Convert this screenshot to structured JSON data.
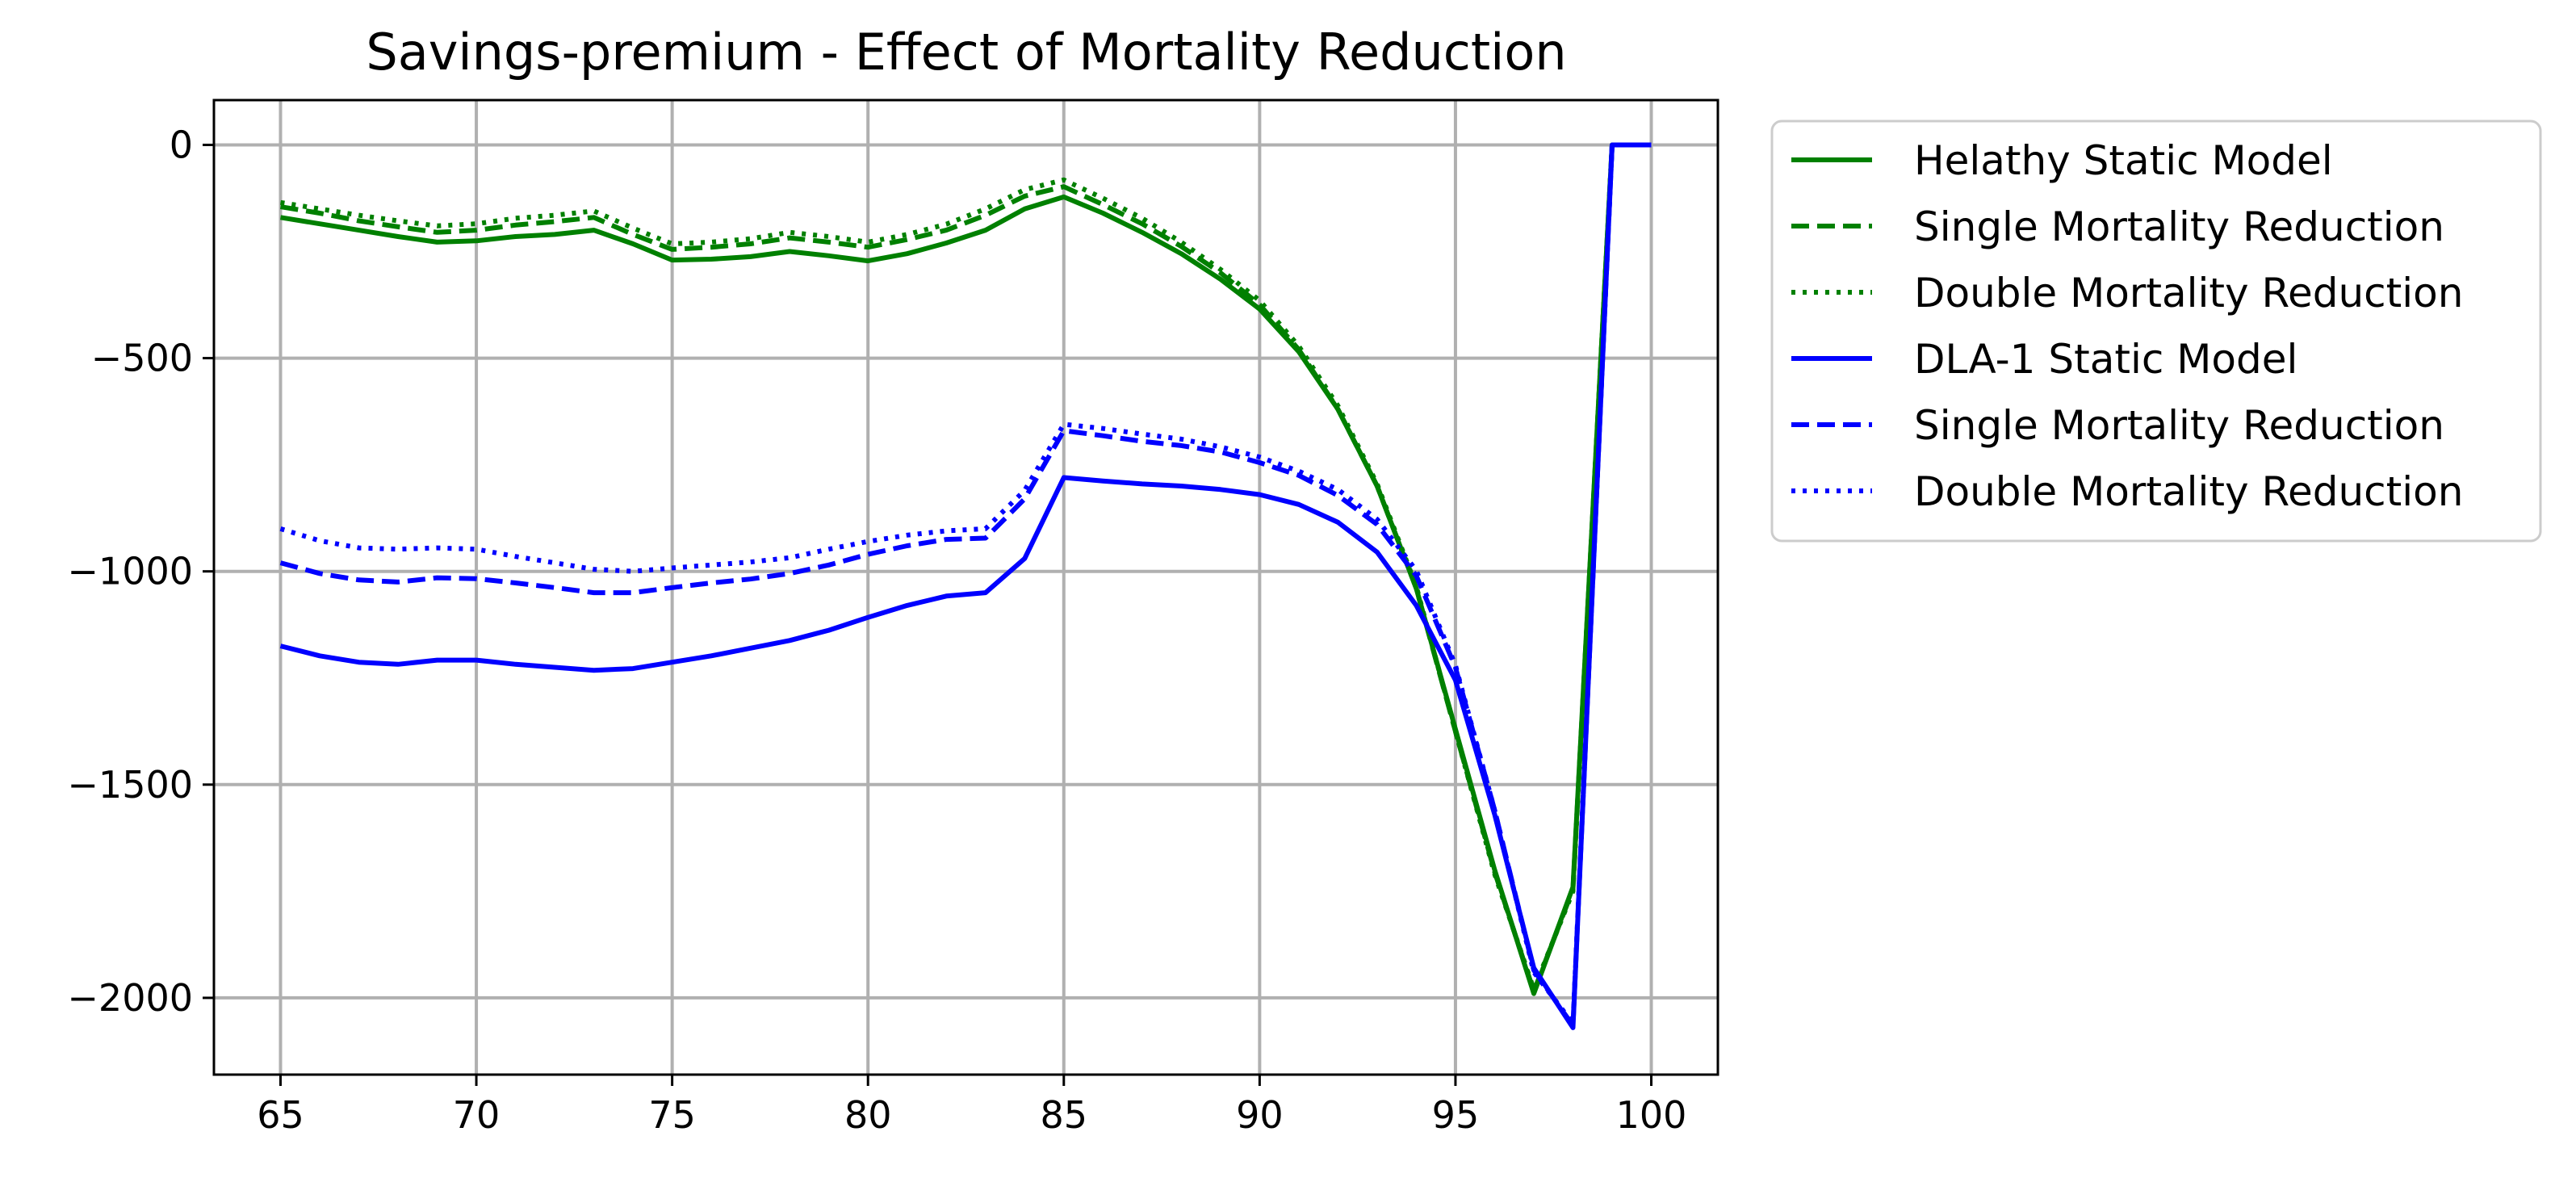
{
  "chart_data": {
    "type": "line",
    "title": "Savings-premium - Effect of Mortality Reduction",
    "xlabel": "",
    "ylabel": "",
    "xlim": [
      63.3,
      101.7
    ],
    "ylim": [
      -2180,
      105
    ],
    "xticks": [
      65,
      70,
      75,
      80,
      85,
      90,
      95,
      100
    ],
    "xtick_labels": [
      "65",
      "70",
      "75",
      "80",
      "85",
      "90",
      "95",
      "100"
    ],
    "yticks": [
      0,
      -500,
      -1000,
      -1500,
      -2000
    ],
    "ytick_labels": [
      "0",
      "−500",
      "−1000",
      "−1500",
      "−2000"
    ],
    "grid": true,
    "legend_position": "outside-top-right",
    "x": [
      65,
      66,
      67,
      68,
      69,
      70,
      71,
      72,
      73,
      74,
      75,
      76,
      77,
      78,
      79,
      80,
      81,
      82,
      83,
      84,
      85,
      86,
      87,
      88,
      89,
      90,
      91,
      92,
      93,
      94,
      95,
      96,
      97,
      98,
      99,
      100
    ],
    "series": [
      {
        "name": "Helathy Static Model",
        "color": "#008000",
        "dash": "solid",
        "values": [
          -170,
          -185,
          -200,
          -215,
          -228,
          -225,
          -215,
          -210,
          -200,
          -232,
          -270,
          -268,
          -262,
          -250,
          -260,
          -272,
          -255,
          -230,
          -200,
          -150,
          -122,
          -160,
          -205,
          -255,
          -315,
          -385,
          -485,
          -620,
          -800,
          -1040,
          -1370,
          -1700,
          -1990,
          -1740,
          0,
          0
        ]
      },
      {
        "name": "Single Mortality Reduction",
        "color": "#008000",
        "dash": "dashed",
        "values": [
          -145,
          -160,
          -178,
          -192,
          -205,
          -200,
          -188,
          -180,
          -170,
          -210,
          -245,
          -240,
          -232,
          -218,
          -228,
          -240,
          -222,
          -200,
          -165,
          -120,
          -98,
          -140,
          -185,
          -238,
          -300,
          -375,
          -480,
          -620,
          -800,
          -1040,
          -1375,
          -1705,
          -1985,
          -1745,
          0,
          0
        ]
      },
      {
        "name": "Double Mortality Reduction",
        "color": "#008000",
        "dash": "dotted",
        "values": [
          -135,
          -150,
          -165,
          -178,
          -190,
          -185,
          -172,
          -165,
          -155,
          -195,
          -232,
          -228,
          -220,
          -205,
          -215,
          -228,
          -210,
          -186,
          -150,
          -105,
          -82,
          -125,
          -172,
          -228,
          -292,
          -365,
          -472,
          -612,
          -795,
          -1035,
          -1375,
          -1710,
          -1980,
          -1750,
          0,
          0
        ]
      },
      {
        "name": "DLA-1 Static Model",
        "color": "#0000ff",
        "dash": "solid",
        "values": [
          -1175,
          -1198,
          -1213,
          -1218,
          -1208,
          -1208,
          -1218,
          -1225,
          -1232,
          -1228,
          -1213,
          -1198,
          -1180,
          -1162,
          -1138,
          -1108,
          -1080,
          -1058,
          -1050,
          -970,
          -780,
          -788,
          -795,
          -800,
          -808,
          -820,
          -843,
          -885,
          -955,
          -1080,
          -1255,
          -1570,
          -1930,
          -2070,
          0,
          0
        ]
      },
      {
        "name": "Single Mortality Reduction",
        "color": "#0000ff",
        "dash": "dashed",
        "values": [
          -980,
          -1005,
          -1020,
          -1025,
          -1015,
          -1017,
          -1027,
          -1038,
          -1050,
          -1050,
          -1038,
          -1027,
          -1018,
          -1005,
          -985,
          -960,
          -940,
          -925,
          -922,
          -830,
          -670,
          -682,
          -695,
          -705,
          -720,
          -745,
          -775,
          -822,
          -890,
          -1010,
          -1225,
          -1560,
          -1935,
          -2065,
          0,
          0
        ]
      },
      {
        "name": "Double Mortality Reduction",
        "color": "#0000ff",
        "dash": "dotted",
        "values": [
          -900,
          -928,
          -945,
          -948,
          -945,
          -948,
          -965,
          -980,
          -995,
          -1000,
          -992,
          -985,
          -978,
          -968,
          -948,
          -930,
          -915,
          -905,
          -900,
          -810,
          -655,
          -665,
          -678,
          -690,
          -708,
          -732,
          -765,
          -808,
          -878,
          -998,
          -1220,
          -1560,
          -1940,
          -2060,
          0,
          0
        ]
      }
    ]
  }
}
